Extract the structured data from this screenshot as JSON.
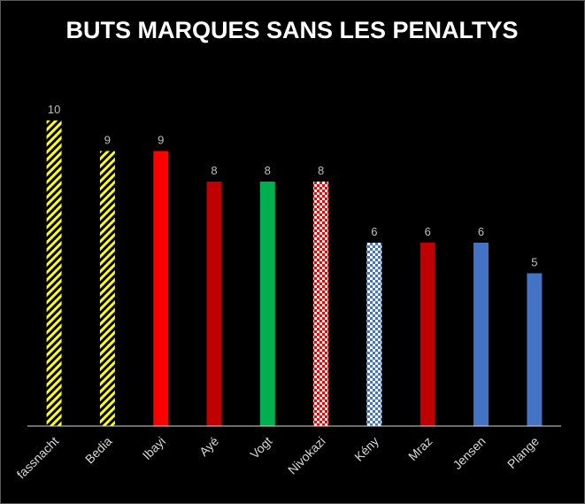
{
  "chart_data": {
    "type": "bar",
    "title": "BUTS MARQUES SANS LES PENALTYS",
    "xlabel": "",
    "ylabel": "",
    "ylim": [
      0,
      10
    ],
    "grid": false,
    "legend": "none",
    "categories": [
      "fassnacht",
      "Bedia",
      "Ibayi",
      "Ayé",
      "Vogt",
      "Nivokazi",
      "Kény",
      "Mraz",
      "Jensen",
      "Plange"
    ],
    "values": [
      10,
      9,
      9,
      8,
      8,
      8,
      6,
      6,
      6,
      5
    ],
    "bar_styles": [
      {
        "fill": "#ffff00",
        "pattern": "stripes"
      },
      {
        "fill": "#ffff00",
        "pattern": "stripes"
      },
      {
        "fill": "#ff0000",
        "pattern": "solid"
      },
      {
        "fill": "#c00000",
        "pattern": "solid"
      },
      {
        "fill": "#00b050",
        "pattern": "solid"
      },
      {
        "fill": "#ff0000",
        "pattern": "checker"
      },
      {
        "fill": "#4472c4",
        "pattern": "checker"
      },
      {
        "fill": "#c00000",
        "pattern": "solid"
      },
      {
        "fill": "#4472c4",
        "pattern": "solid"
      },
      {
        "fill": "#4472c4",
        "pattern": "solid"
      }
    ],
    "colors": {
      "background": "#000000",
      "title": "#ffffff",
      "data_label": "#bfbfbf",
      "tick_label": "#d9d9d9",
      "axis": "#d9d9d9"
    }
  }
}
